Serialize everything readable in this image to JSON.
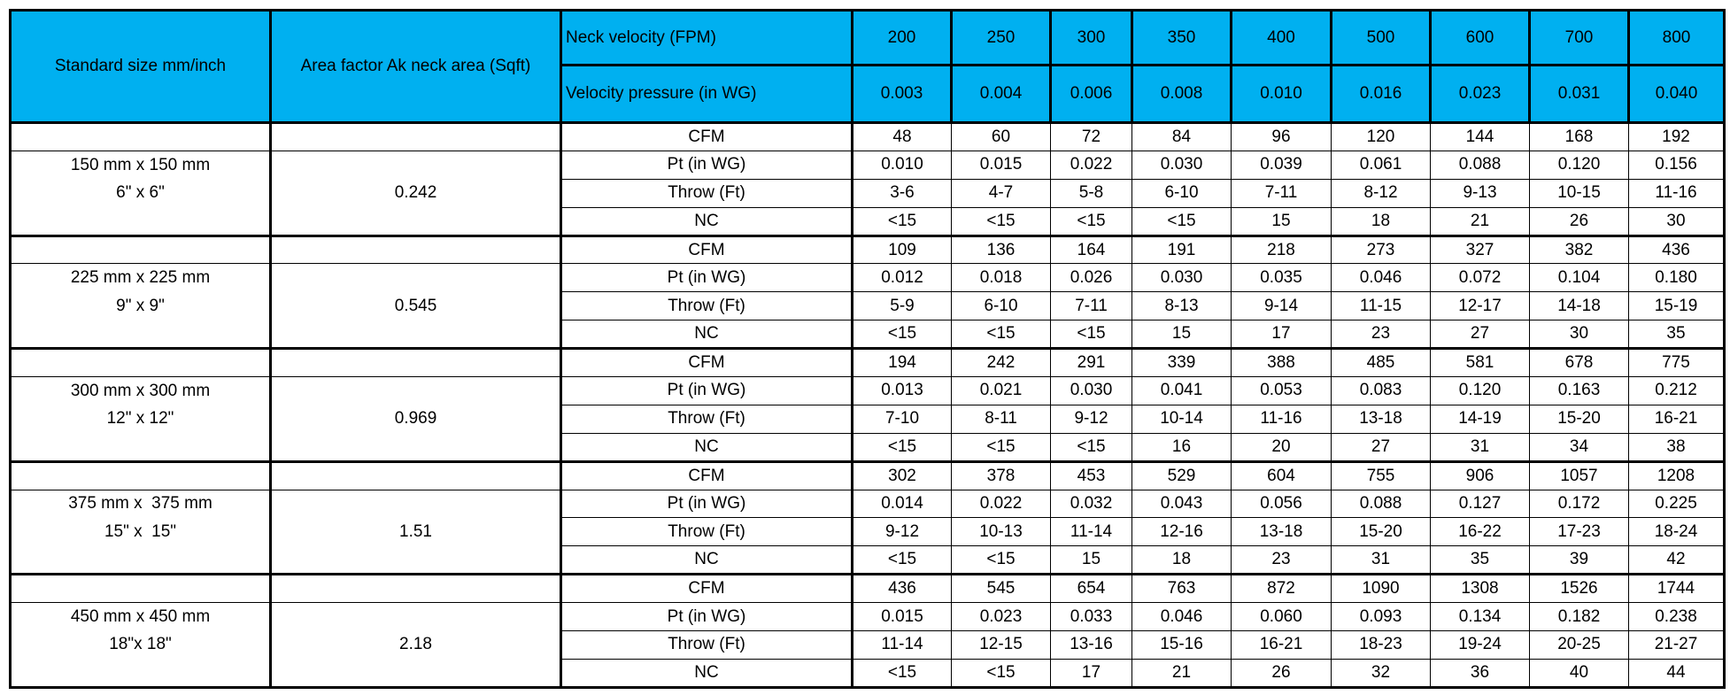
{
  "table": {
    "header": {
      "size_title": "Standard size mm/inch",
      "area_title": "Area factor Ak neck area (Sqft)",
      "velocity_title": "Neck velocity (FPM)",
      "velocities": [
        "200",
        "250",
        "300",
        "350",
        "400",
        "500",
        "600",
        "700",
        "800"
      ],
      "pressure_title": "Velocity pressure (in WG)",
      "pressures": [
        "0.003",
        "0.004",
        "0.006",
        "0.008",
        "0.010",
        "0.016",
        "0.023",
        "0.031",
        "0.040"
      ]
    },
    "groups": [
      {
        "size_mm": "150 mm x 150 mm",
        "size_inch": "6\" x 6\"",
        "area": "0.242",
        "rows": [
          {
            "label": "CFM",
            "values": [
              "48",
              "60",
              "72",
              "84",
              "96",
              "120",
              "144",
              "168",
              "192"
            ]
          },
          {
            "label": "Pt (in WG)",
            "values": [
              "0.010",
              "0.015",
              "0.022",
              "0.030",
              "0.039",
              "0.061",
              "0.088",
              "0.120",
              "0.156"
            ]
          },
          {
            "label": "Throw (Ft)",
            "values": [
              "3-6",
              "4-7",
              "5-8",
              "6-10",
              "7-11",
              "8-12",
              "9-13",
              "10-15",
              "11-16"
            ]
          },
          {
            "label": "NC",
            "values": [
              "<15",
              "<15",
              "<15",
              "<15",
              "15",
              "18",
              "21",
              "26",
              "30"
            ]
          }
        ]
      },
      {
        "size_mm": "225 mm x 225 mm",
        "size_inch": "9\" x 9\"",
        "area": "0.545",
        "rows": [
          {
            "label": "CFM",
            "values": [
              "109",
              "136",
              "164",
              "191",
              "218",
              "273",
              "327",
              "382",
              "436"
            ]
          },
          {
            "label": "Pt (in WG)",
            "values": [
              "0.012",
              "0.018",
              "0.026",
              "0.030",
              "0.035",
              "0.046",
              "0.072",
              "0.104",
              "0.180"
            ]
          },
          {
            "label": "Throw (Ft)",
            "values": [
              "5-9",
              "6-10",
              "7-11",
              "8-13",
              "9-14",
              "11-15",
              "12-17",
              "14-18",
              "15-19"
            ]
          },
          {
            "label": "NC",
            "values": [
              "<15",
              "<15",
              "<15",
              "15",
              "17",
              "23",
              "27",
              "30",
              "35"
            ]
          }
        ]
      },
      {
        "size_mm": "300 mm x 300 mm",
        "size_inch": "12\" x 12\"",
        "area": "0.969",
        "rows": [
          {
            "label": "CFM",
            "values": [
              "194",
              "242",
              "291",
              "339",
              "388",
              "485",
              "581",
              "678",
              "775"
            ]
          },
          {
            "label": "Pt (in WG)",
            "values": [
              "0.013",
              "0.021",
              "0.030",
              "0.041",
              "0.053",
              "0.083",
              "0.120",
              "0.163",
              "0.212"
            ]
          },
          {
            "label": "Throw (Ft)",
            "values": [
              "7-10",
              "8-11",
              "9-12",
              "10-14",
              "11-16",
              "13-18",
              "14-19",
              "15-20",
              "16-21"
            ]
          },
          {
            "label": "NC",
            "values": [
              "<15",
              "<15",
              "<15",
              "16",
              "20",
              "27",
              "31",
              "34",
              "38"
            ]
          }
        ]
      },
      {
        "size_mm": "375 mm x  375 mm",
        "size_inch": "15\" x  15\"",
        "area": "1.51",
        "rows": [
          {
            "label": "CFM",
            "values": [
              "302",
              "378",
              "453",
              "529",
              "604",
              "755",
              "906",
              "1057",
              "1208"
            ]
          },
          {
            "label": "Pt (in WG)",
            "values": [
              "0.014",
              "0.022",
              "0.032",
              "0.043",
              "0.056",
              "0.088",
              "0.127",
              "0.172",
              "0.225"
            ]
          },
          {
            "label": "Throw (Ft)",
            "values": [
              "9-12",
              "10-13",
              "11-14",
              "12-16",
              "13-18",
              "15-20",
              "16-22",
              "17-23",
              "18-24"
            ]
          },
          {
            "label": "NC",
            "values": [
              "<15",
              "<15",
              "15",
              "18",
              "23",
              "31",
              "35",
              "39",
              "42"
            ]
          }
        ]
      },
      {
        "size_mm": "450 mm x 450 mm",
        "size_inch": "18\"x 18\"",
        "area": "2.18",
        "rows": [
          {
            "label": "CFM",
            "values": [
              "436",
              "545",
              "654",
              "763",
              "872",
              "1090",
              "1308",
              "1526",
              "1744"
            ]
          },
          {
            "label": "Pt (in WG)",
            "values": [
              "0.015",
              "0.023",
              "0.033",
              "0.046",
              "0.060",
              "0.093",
              "0.134",
              "0.182",
              "0.238"
            ]
          },
          {
            "label": "Throw (Ft)",
            "values": [
              "11-14",
              "12-15",
              "13-16",
              "15-16",
              "16-21",
              "18-23",
              "19-24",
              "20-25",
              "21-27"
            ]
          },
          {
            "label": "NC",
            "values": [
              "<15",
              "<15",
              "17",
              "21",
              "26",
              "32",
              "36",
              "40",
              "44"
            ]
          }
        ]
      }
    ]
  }
}
